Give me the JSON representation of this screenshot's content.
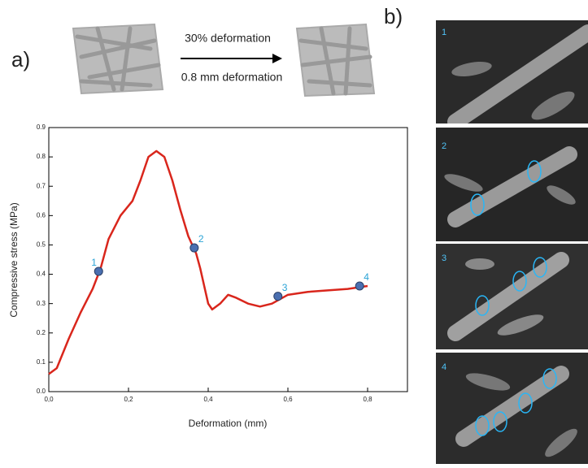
{
  "panel_labels": [
    "a)",
    "b)"
  ],
  "arrow_texts": [
    "30% deformation",
    "0.8 mm deformation"
  ],
  "image_labels": [
    "1",
    "2",
    "3",
    "4"
  ],
  "chart_data": {
    "type": "line",
    "x_label": "Deformation (mm)",
    "y_label": "Compressive stress (MPa)",
    "x": [
      0,
      0.02,
      0.05,
      0.08,
      0.11,
      0.13,
      0.15,
      0.18,
      0.21,
      0.23,
      0.25,
      0.27,
      0.29,
      0.31,
      0.33,
      0.35,
      0.37,
      0.38,
      0.4,
      0.41,
      0.43,
      0.45,
      0.47,
      0.5,
      0.53,
      0.56,
      0.6,
      0.65,
      0.7,
      0.75,
      0.8
    ],
    "values": [
      0.06,
      0.08,
      0.18,
      0.27,
      0.35,
      0.42,
      0.52,
      0.6,
      0.65,
      0.72,
      0.8,
      0.82,
      0.8,
      0.72,
      0.62,
      0.53,
      0.47,
      0.42,
      0.3,
      0.28,
      0.3,
      0.33,
      0.32,
      0.3,
      0.29,
      0.3,
      0.33,
      0.34,
      0.345,
      0.35,
      0.36
    ],
    "color": "#d9261c",
    "points": {
      "x": [
        0.125,
        0.365,
        0.575,
        0.78
      ],
      "values": [
        0.41,
        0.49,
        0.325,
        0.36
      ],
      "labels": [
        "1",
        "2",
        "3",
        "4"
      ],
      "color": "#4a6fb0",
      "label_color": "#2aa3d6"
    },
    "xlim": [
      0,
      0.9
    ],
    "ylim": [
      0,
      0.9
    ],
    "xticks": [
      {
        "value": 0,
        "label": "0,0"
      },
      {
        "value": 0.2,
        "label": "0,2"
      },
      {
        "value": 0.4,
        "label": "0,4"
      },
      {
        "value": 0.6,
        "label": "0,6"
      },
      {
        "value": 0.8,
        "label": "0,8"
      }
    ],
    "yticks": [
      {
        "value": 0,
        "label": "0.0"
      },
      0.1,
      0.2,
      0.3,
      0.4,
      0.5,
      0.6,
      0.7,
      0.8,
      0.9
    ]
  }
}
